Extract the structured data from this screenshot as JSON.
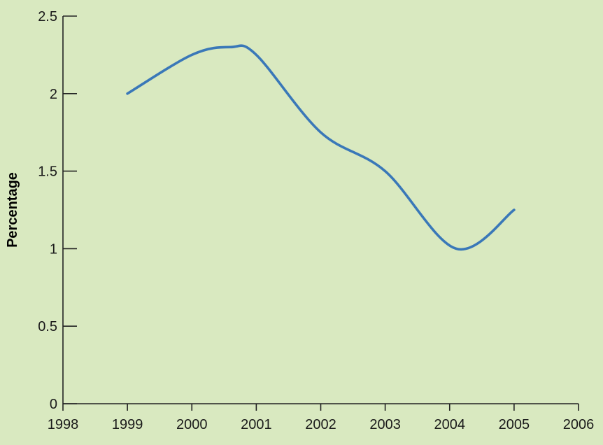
{
  "chart_data": {
    "type": "line",
    "title": "",
    "xlabel": "",
    "ylabel": "Percentage",
    "xlim": [
      1998,
      2006
    ],
    "ylim": [
      0,
      2.5
    ],
    "x_ticks": [
      "1998",
      "1999",
      "2000",
      "2001",
      "2002",
      "2003",
      "2004",
      "2005",
      "2006"
    ],
    "y_ticks": [
      "0",
      "0.5",
      "1",
      "1.5",
      "2",
      "2.5"
    ],
    "grid": false,
    "legend": "none",
    "series": [
      {
        "color": "#3a78b8",
        "x": [
          1999,
          2000,
          2000.6,
          2001,
          2002,
          2003,
          2004.1,
          2005
        ],
        "y": [
          2.0,
          2.25,
          2.3,
          2.25,
          1.75,
          1.5,
          1.0,
          1.25
        ]
      }
    ]
  }
}
